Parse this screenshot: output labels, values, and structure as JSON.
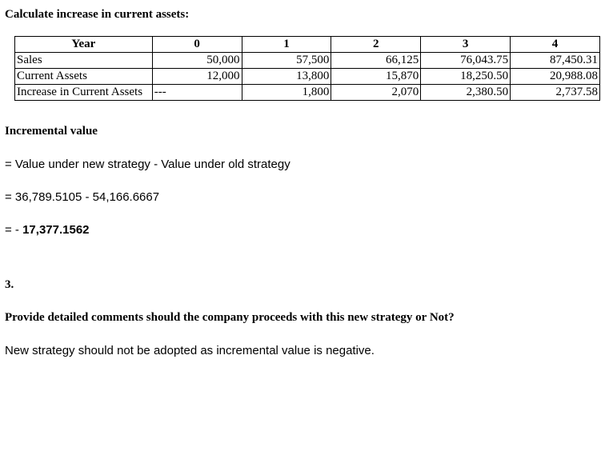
{
  "heading": "Calculate increase in current assets:",
  "table": {
    "header": {
      "year": "Year",
      "c0": "0",
      "c1": "1",
      "c2": "2",
      "c3": "3",
      "c4": "4"
    },
    "rows": {
      "sales": {
        "label": "Sales",
        "v0": "50,000",
        "v1": "57,500",
        "v2": "66,125",
        "v3": "76,043.75",
        "v4": "87,450.31"
      },
      "ca": {
        "label": "Current Assets",
        "v0": "12,000",
        "v1": "13,800",
        "v2": "15,870",
        "v3": "18,250.50",
        "v4": "20,988.08"
      },
      "inc": {
        "label": "Increase in Current Assets",
        "v0": "---",
        "v1": "1,800",
        "v2": "2,070",
        "v3": "2,380.50",
        "v4": "2,737.58"
      }
    }
  },
  "subheading": "Incremental value",
  "eq1": "= Value under new strategy - Value under old strategy",
  "eq2": "= 36,789.5105 - 54,166.6667",
  "eq3_prefix": "= - ",
  "eq3_value": "17,377.1562",
  "section_num": "3.",
  "question": "Provide detailed comments should the company proceeds with this new strategy or Not?",
  "answer": "New strategy should not be adopted as incremental value is negative."
}
